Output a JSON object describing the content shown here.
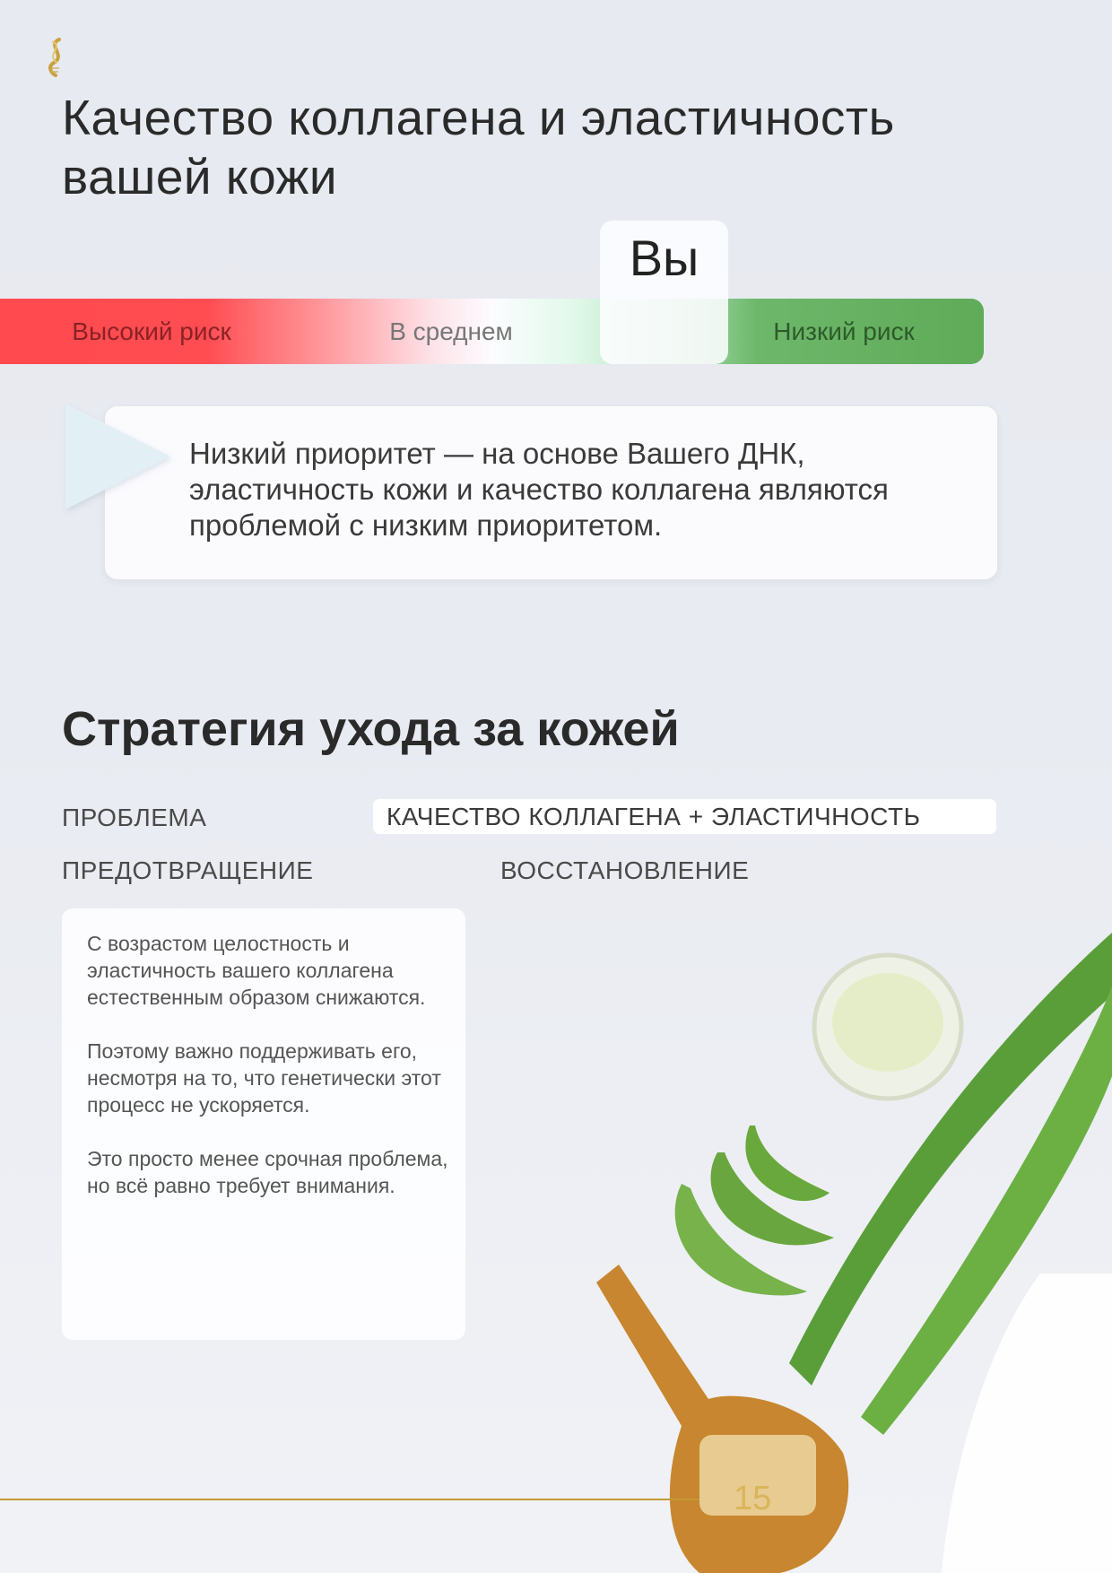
{
  "header": {
    "logo": "dna-helix-logo",
    "title_line1": "Качество коллагена и эластичность",
    "title_line2": "вашей кожи"
  },
  "risk_scale": {
    "labels": {
      "high": "Высокий риск",
      "average": "В среднем",
      "low": "Низкий риск"
    },
    "marker_label": "Вы",
    "marker_position": "low-risk edge",
    "colors": {
      "high": "#ff4d52",
      "average": "#fdfcff",
      "low": "#5fab58"
    }
  },
  "callout": {
    "text": "Низкий приоритет — на основе Вашего ДНК, эластичность кожи и качество коллагена являются проблемой с низким приоритетом."
  },
  "strategy": {
    "heading": "Стратегия ухода за кожей",
    "problem_label": "ПРОБЛЕМА",
    "problem_value": "КАЧЕСТВО КОЛЛАГЕНА + ЭЛАСТИЧНОСТЬ",
    "prevention_label": "ПРЕДОТВРАЩЕНИЕ",
    "recovery_label": "ВОССТАНОВЛЕНИЕ",
    "prevention_paragraphs": [
      "С возрастом целостность и эластичность вашего коллагена естественным образом снижаются.",
      "Поэтому важно поддерживать его, несмотря на то, что генетически этот процесс не ускоряется.",
      "Это просто менее срочная проблема, но всё равно требует внимания."
    ]
  },
  "footer": {
    "page_number": "15",
    "accent_color": "#c49a33"
  }
}
